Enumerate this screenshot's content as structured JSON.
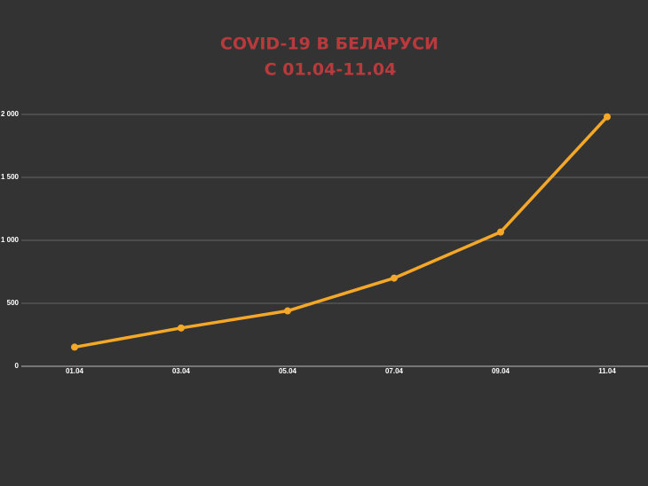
{
  "chart_data": {
    "type": "line",
    "title": "COVID-19 В БЕЛАРУСИ",
    "subtitle": "С 01.04-11.04",
    "categories": [
      "01.04",
      "03.04",
      "05.04",
      "07.04",
      "09.04",
      "11.04"
    ],
    "series": [
      {
        "color": "#f5a828",
        "values": [
          152,
          304,
          440,
          700,
          1066,
          1981
        ]
      }
    ],
    "ylim": [
      0,
      2000
    ],
    "yticks": [
      0,
      500,
      {
        "value": 1000,
        "label": "1 000"
      },
      {
        "value": 1500,
        "label": "1 500"
      },
      {
        "value": 2000,
        "label": "2 000"
      }
    ],
    "grid": true
  }
}
